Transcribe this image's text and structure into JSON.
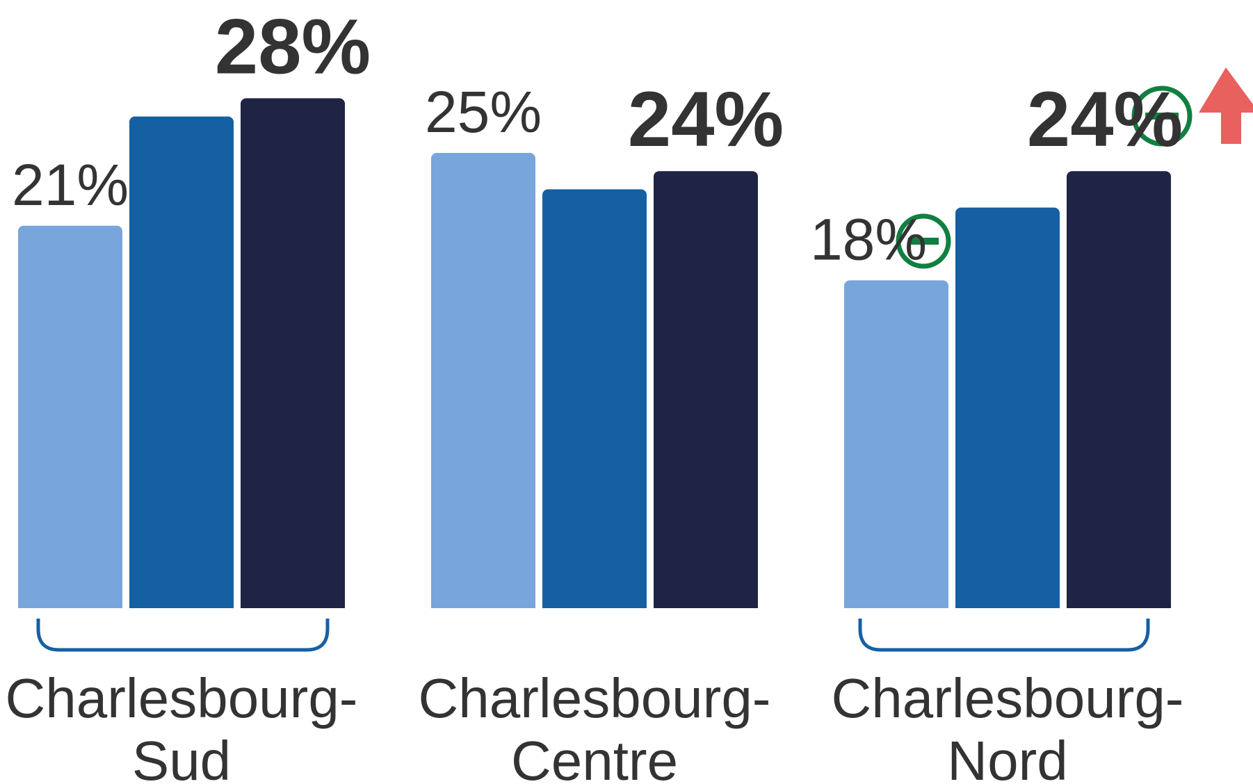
{
  "chart_data": {
    "type": "bar",
    "categories": [
      "Charlesbourg-Sud",
      "Charlesbourg-Centre",
      "Charlesbourg-Nord"
    ],
    "series": [
      {
        "color": "#78a5dc",
        "values": [
          21,
          25,
          18
        ],
        "value_labels": [
          "21%",
          "25%",
          "18%"
        ]
      },
      {
        "color": "#1560a2",
        "values": [
          27,
          23,
          22
        ]
      },
      {
        "color": "#1f2445",
        "values": [
          28,
          24,
          24
        ],
        "value_labels": [
          "28%",
          "24%",
          "24%"
        ]
      }
    ]
  }
}
